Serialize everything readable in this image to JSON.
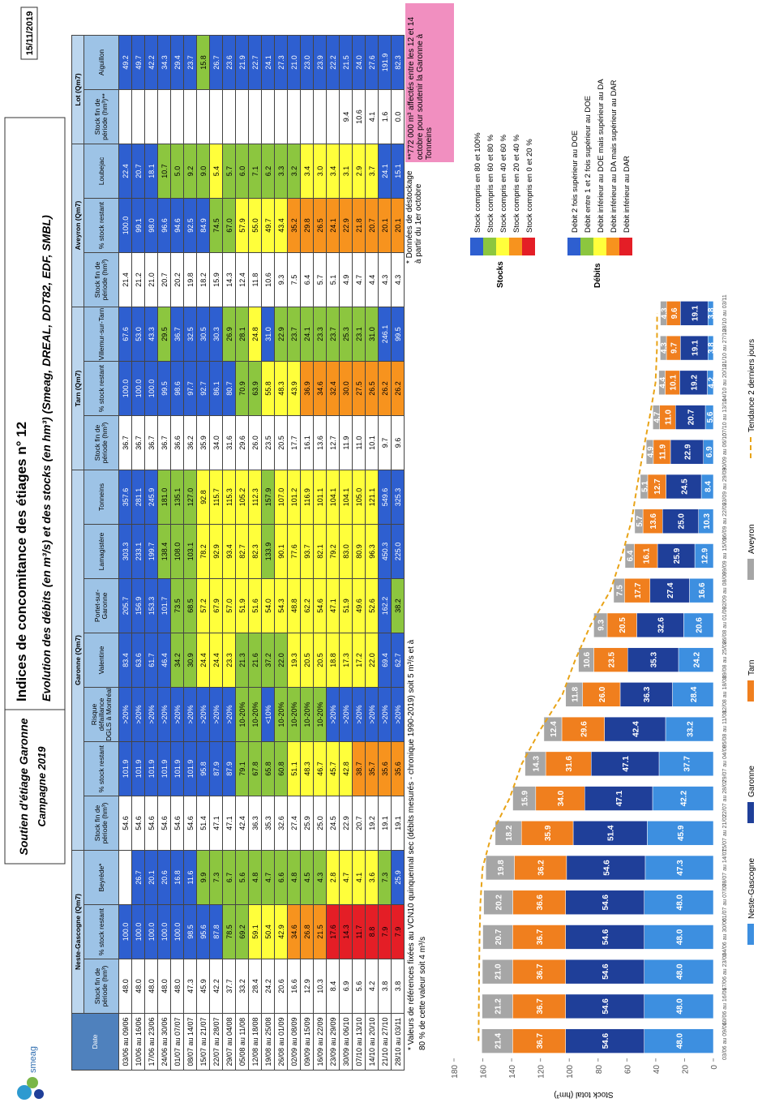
{
  "header": {
    "logo": "smeag",
    "title": "Soutien d'étiage Garonne",
    "campaign": "Campagne 2019",
    "heading": "Indices de concomitance des étiages n° 12",
    "subheading": "Evolution des débits (en m³/s) et des stocks (en hm³) (Smeag, DREAL, DDT82, EDF, SMBL)",
    "date": "15/11/2019"
  },
  "table": {
    "date_header": "Date",
    "palette": [
      "#2e5fd0",
      "#8cc63f",
      "#ffff3b",
      "#f7931e",
      "#e41e26"
    ],
    "stock_thresholds": [
      80,
      60,
      40,
      20
    ],
    "dates": [
      "03/06 au 09/06",
      "10/06 au 16/06",
      "17/06 au 23/06",
      "24/06 au 30/06",
      "01/07 au 07/07",
      "08/07 au 14/07",
      "15/07 au 21/07",
      "22/07 au 28/07",
      "29/07 au 04/08",
      "05/08 au 11/08",
      "12/08 au 18/08",
      "19/08 au 25/08",
      "26/08 au 01/09",
      "02/09 au 08/09",
      "09/09 au 15/09",
      "16/09 au 22/09",
      "23/09 au 29/09",
      "30/09 au 06/10",
      "07/10 au 13/10",
      "14/10 au 20/10",
      "21/10 au 27/10",
      "28/10 au 03/11"
    ],
    "groups": [
      {
        "title": "Neste-Gascogne (Qm7)",
        "columns": [
          {
            "header": "Stock fin de période (hm³)",
            "kind": "stock",
            "values": [
              "48.0",
              "48.0",
              "48.0",
              "48.0",
              "48.0",
              "47.3",
              "45.9",
              "42.2",
              "37.7",
              "33.2",
              "28.4",
              "24.2",
              "20.6",
              "16.6",
              "12.9",
              "10.3",
              "8.4",
              "6.9",
              "5.6",
              "4.2",
              "3.8",
              "3.8"
            ]
          },
          {
            "header": "% stock restant",
            "kind": "pct",
            "values": [
              "100.0",
              "100.0",
              "100.0",
              "100.0",
              "100.0",
              "98.5",
              "95.6",
              "87.8",
              "78.5",
              "69.2",
              "59.1",
              "50.4",
              "42.9",
              "34.6",
              "26.8",
              "21.5",
              "17.6",
              "14.3",
              "11.7",
              "8.8",
              "7.9",
              "7.9"
            ]
          },
          {
            "header": "Beyrède*",
            "kind": "flow",
            "levels": "-000001111111111222210",
            "values": [
              null,
              "26.7",
              "20.1",
              "20.6",
              "16.8",
              "11.6",
              "9.9",
              "7.3",
              "6.7",
              "5.6",
              "4.8",
              "4.7",
              "6.6",
              "4.8",
              "4.5",
              "4.3",
              "2.8",
              "4.7",
              "4.1",
              "3.6",
              "7.3",
              "25.9"
            ]
          }
        ]
      },
      {
        "title": "Garonne (Qm7)",
        "columns": [
          {
            "header": "Stock fin de période (hm³)",
            "kind": "stock",
            "values": [
              "54.6",
              "54.6",
              "54.6",
              "54.6",
              "54.6",
              "54.6",
              "51.4",
              "47.1",
              "47.1",
              "42.4",
              "36.3",
              "35.3",
              "32.6",
              "27.4",
              "25.9",
              "25.0",
              "24.5",
              "22.9",
              "20.7",
              "19.2",
              "19.1",
              "19.1"
            ]
          },
          {
            "header": "% stock restant",
            "kind": "pct",
            "values": [
              "101.9",
              "101.9",
              "101.9",
              "101.9",
              "101.9",
              "101.9",
              "95.8",
              "87.9",
              "87.9",
              "79.1",
              "67.8",
              "65.8",
              "60.8",
              "51.1",
              "48.3",
              "46.7",
              "45.7",
              "42.8",
              "38.7",
              "35.7",
              "35.6",
              "35.6"
            ]
          },
          {
            "header": "Risque défaillance DGLS à Montréal",
            "kind": "flow",
            "levels": "0000000001101111000000",
            "values": [
              ">20%",
              ">20%",
              ">20%",
              ">20%",
              ">20%",
              ">20%",
              ">20%",
              ">20%",
              ">20%",
              "10-20%",
              "10-20%",
              "<10%",
              "10-20%",
              "10-20%",
              "10-20%",
              "10-20%",
              ">20%",
              ">20%",
              ">20%",
              ">20%",
              ">20%",
              ">20%"
            ]
          },
          {
            "header": "Valentine",
            "kind": "flow",
            "levels": "0000112221111222222200",
            "values": [
              "83.4",
              "63.6",
              "61.7",
              "46.4",
              "34.2",
              "30.9",
              "24.4",
              "24.4",
              "23.3",
              "21.3",
              "21.6",
              "37.2",
              "22.0",
              "19.3",
              "20.5",
              "20.5",
              "18.8",
              "17.3",
              "17.2",
              "22.0",
              "69.4",
              "62.7"
            ]
          },
          {
            "header": "Portet-sur-Garonne",
            "kind": "flow",
            "levels": "0000112222222222222201",
            "values": [
              "205.7",
              "156.9",
              "153.3",
              "101.7",
              "73.5",
              "68.5",
              "57.2",
              "67.9",
              "57.0",
              "51.9",
              "51.6",
              "54.0",
              "54.3",
              "48.8",
              "62.2",
              "54.6",
              "47.1",
              "51.9",
              "49.6",
              "52.6",
              "162.2",
              "38.2"
            ]
          },
          {
            "header": "Lamagistère",
            "kind": "flow",
            "levels": "0001112222212222222200",
            "values": [
              "303.3",
              "233.1",
              "199.7",
              "138.4",
              "108.0",
              "103.1",
              "78.2",
              "92.9",
              "93.4",
              "82.7",
              "82.3",
              "133.9",
              "90.1",
              "77.6",
              "93.7",
              "82.1",
              "79.2",
              "83.0",
              "80.9",
              "96.3",
              "450.3",
              "225.0"
            ]
          },
          {
            "header": "Tonneins",
            "kind": "flow",
            "levels": "0001112222212222222200",
            "values": [
              "357.6",
              "281.1",
              "245.9",
              "181.0",
              "135.1",
              "127.0",
              "92.8",
              "115.7",
              "115.3",
              "105.2",
              "112.3",
              "157.9",
              "107.0",
              "101.2",
              "116.9",
              "101.1",
              "104.1",
              "104.1",
              "105.0",
              "121.1",
              "549.6",
              "325.3"
            ]
          }
        ]
      },
      {
        "title": "Tarn (Qm7)",
        "columns": [
          {
            "header": "Stock fin de période (hm³)",
            "kind": "stock",
            "values": [
              "36.7",
              "36.7",
              "36.7",
              "36.7",
              "36.6",
              "36.2",
              "35.9",
              "34.0",
              "31.6",
              "29.6",
              "26.0",
              "23.5",
              "20.5",
              "17.7",
              "16.1",
              "13.6",
              "12.7",
              "11.9",
              "11.0",
              "10.1",
              "9.7",
              "9.6"
            ]
          },
          {
            "header": "% stock restant",
            "kind": "pct",
            "values": [
              "100.0",
              "100.0",
              "100.0",
              "99.5",
              "98.6",
              "97.7",
              "92.7",
              "86.1",
              "80.7",
              "70.9",
              "63.9",
              "55.8",
              "48.3",
              "43.9",
              "36.9",
              "34.6",
              "32.4",
              "30.0",
              "27.5",
              "26.5",
              "26.2",
              "26.2"
            ]
          },
          {
            "header": "Villemur-sur-Tarn",
            "kind": "flow",
            "levels": "0001000011201111111100",
            "values": [
              "67.6",
              "53.0",
              "43.3",
              "29.5",
              "36.7",
              "32.5",
              "30.5",
              "30.3",
              "26.9",
              "28.1",
              "24.8",
              "31.0",
              "22.9",
              "23.7",
              "24.1",
              "23.3",
              "23.7",
              "25.3",
              "23.1",
              "31.0",
              "246.1",
              "99.5"
            ]
          }
        ]
      },
      {
        "title": "Aveyron (Qm7)",
        "columns": [
          {
            "header": "Stock fin de période (hm³)",
            "kind": "stock",
            "values": [
              "21.4",
              "21.2",
              "21.0",
              "20.7",
              "20.2",
              "19.8",
              "18.2",
              "15.9",
              "14.3",
              "12.4",
              "11.8",
              "10.6",
              "9.3",
              "7.5",
              "6.4",
              "5.7",
              "5.1",
              "4.9",
              "4.7",
              "4.4",
              "4.3",
              "4.3"
            ]
          },
          {
            "header": "% stock restant",
            "kind": "pct",
            "values": [
              "100.0",
              "99.1",
              "98.0",
              "96.6",
              "94.6",
              "92.5",
              "84.9",
              "74.5",
              "67.0",
              "57.9",
              "55.0",
              "49.7",
              "43.4",
              "35.2",
              "29.8",
              "26.5",
              "24.1",
              "22.9",
              "21.8",
              "20.7",
              "20.1",
              "20.1"
            ]
          },
          {
            "header": "Loubejac",
            "kind": "flow",
            "levels": "0001111211111122222200",
            "values": [
              "22.4",
              "20.7",
              "18.1",
              "10.7",
              "5.0",
              "9.2",
              "9.0",
              "5.4",
              "5.7",
              "6.0",
              "7.1",
              "6.2",
              "3.3",
              "3.2",
              "3.4",
              "3.0",
              "3.4",
              "3.1",
              "2.9",
              "3.7",
              "24.1",
              "15.1"
            ]
          }
        ]
      },
      {
        "title": "Lot (Qm7)",
        "columns": [
          {
            "header": "Stock fin de période (hm³)**",
            "kind": "stock",
            "values": [
              null,
              null,
              null,
              null,
              null,
              null,
              null,
              null,
              null,
              null,
              null,
              null,
              null,
              null,
              null,
              null,
              null,
              "9.4",
              "10.6",
              "4.1",
              "1.6",
              "0.0"
            ]
          },
          {
            "header": "Aiguillon",
            "kind": "flow",
            "levels": "0000001000000000000000",
            "values": [
              "49.2",
              "49.7",
              "42.2",
              "34.3",
              "29.4",
              "23.7",
              "15.8",
              "26.7",
              "23.6",
              "21.9",
              "22.7",
              "24.1",
              "27.3",
              "21.0",
              "23.0",
              "23.9",
              "22.2",
              "21.5",
              "24.0",
              "27.6",
              "191.9",
              "82.3"
            ]
          }
        ]
      }
    ],
    "footnote1": "* Valeurs de références fixées au VCN10 quinquennal sec (débits mesurés - chronique 1990-2019) soit 5 m³/s et à",
    "footnote2": "80 % de cette valeur soit 4 m³/s"
  },
  "notes": {
    "destockage": "* Données de déstockage à partir du 1er octobre",
    "lot": "**772 000 m³ affectés entre les 12 et 14 octobre pour soutenir la Garonne à Tonneins"
  },
  "legend_stocks": {
    "title": "Stocks",
    "items": [
      "Stock compris en 80 et 100%",
      "Stock compris en 60 et 80 %",
      "Stock compris en 40 et 60 %",
      "Stock compris en 20 et 40 %",
      "Stock compris en 0 et 20 %"
    ]
  },
  "legend_debits": {
    "title": "Débits",
    "items": [
      "Débit 2 fois supérieur au DOE",
      "Débit entre 1 et 2 fois supérieur au DOE",
      "Débit inférieur au DOE mais supérieur au DA",
      "Débit inférieur au DA mais supérieur au DAR",
      "Débit inférieur au DAR"
    ]
  },
  "chart_data": {
    "type": "stacked_bar",
    "y_label": "Stock total (hm³)",
    "ylim": [
      0,
      180
    ],
    "yticks": [
      0,
      20,
      40,
      60,
      80,
      100,
      120,
      140,
      160,
      180
    ],
    "trend_label": "Tendance 2 derniers jours",
    "trend_color": "#e8a317",
    "categories": [
      "03/06 au 09/06",
      "10/06 au 16/06",
      "17/06 au 23/06",
      "24/06 au 30/06",
      "01/07 au 07/07",
      "08/07 au 14/07",
      "15/07 au 21/07",
      "22/07 au 28/07",
      "29/07 au 04/08",
      "05/08 au 11/08",
      "12/08 au 18/08",
      "19/08 au 25/08",
      "26/08 au 01/09",
      "02/09 au 08/09",
      "09/09 au 15/09",
      "16/09 au 22/09",
      "23/09 au 29/09",
      "30/09 au 06/10",
      "07/10 au 13/10",
      "14/10 au 20/10",
      "21/10 au 27/10",
      "28/10 au 03/11"
    ],
    "series": [
      {
        "name": "Neste-Gascogne",
        "color": "#3d8fe0",
        "values": [
          48,
          48,
          48,
          48,
          48,
          47.3,
          45.9,
          42.2,
          37.7,
          33.2,
          28.4,
          24.2,
          20.6,
          16.6,
          12.9,
          10.3,
          8.4,
          6.9,
          5.6,
          4.2,
          3.8,
          3.8
        ],
        "value_labels": [
          "48.0",
          "48.0",
          "48.0",
          "48.0",
          "48.0",
          "47.3",
          "45.9",
          "42.2",
          "37.7",
          "33.2",
          "28.4",
          "24.2",
          "20.6",
          "16.6",
          "12.9",
          "10.3",
          "8.4",
          "6.9",
          "5.6",
          "4.2",
          "3.8",
          "3.8"
        ]
      },
      {
        "name": "Garonne",
        "color": "#1f3f99",
        "values": [
          54.6,
          54.6,
          54.6,
          54.6,
          54.6,
          54.6,
          51.4,
          47.1,
          47.1,
          42.4,
          36.3,
          35.3,
          32.6,
          27.4,
          25.9,
          25,
          24.5,
          22.9,
          20.7,
          19.2,
          19.1,
          19.1
        ],
        "value_labels": [
          "54.6",
          "54.6",
          "54.6",
          "54.6",
          "54.6",
          "54.6",
          "51.4",
          "47.1",
          "47.1",
          "42.4",
          "36.3",
          "35.3",
          "32.6",
          "27.4",
          "25.9",
          "25.0",
          "24.5",
          "22.9",
          "20.7",
          "19.2",
          "19.1",
          "19.1"
        ]
      },
      {
        "name": "Tarn",
        "color": "#f07f1e",
        "values": [
          36.7,
          36.7,
          36.7,
          36.7,
          36.6,
          36.2,
          35.9,
          34,
          31.6,
          29.6,
          26,
          23.5,
          20.5,
          17.7,
          16.1,
          13.6,
          12.7,
          11.9,
          11,
          10.1,
          9.7,
          9.6
        ],
        "value_labels": [
          "36.7",
          "36.7",
          "36.7",
          "36.7",
          "36.6",
          "36.2",
          "35.9",
          "34.0",
          "31.6",
          "29.6",
          "26.0",
          "23.5",
          "20.5",
          "17.7",
          "16.1",
          "13.6",
          "12.7",
          "11.9",
          "11.0",
          "10.1",
          "9.7",
          "9.6"
        ]
      },
      {
        "name": "Aveyron",
        "color": "#a6a6a6",
        "values": [
          21.4,
          21.2,
          21,
          20.7,
          20.2,
          19.8,
          18.2,
          15.9,
          14.3,
          12.4,
          11.8,
          10.6,
          9.3,
          7.5,
          6.4,
          5.7,
          5.1,
          4.9,
          4.7,
          4.4,
          4.3,
          4.3
        ],
        "value_labels": [
          "21.4",
          "21.2",
          "21.0",
          "20.7",
          "20.2",
          "19.8",
          "18.2",
          "15.9",
          "14.3",
          "12.4",
          "11.8",
          "10.6",
          "9.3",
          "7.5",
          "6.4",
          "5.7",
          "5.1",
          "4.9",
          "4.7",
          "4.4",
          "4.3",
          "4.3"
        ]
      }
    ]
  }
}
